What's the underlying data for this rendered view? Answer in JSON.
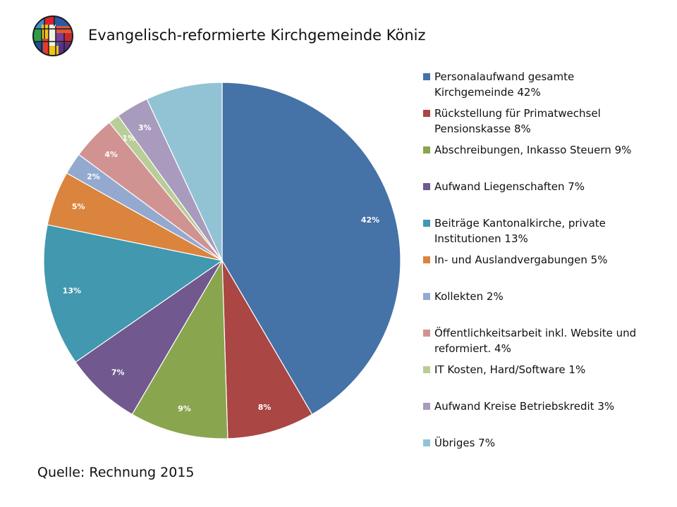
{
  "header": {
    "title": "Evangelisch-reformierte Kirchgemeinde Köniz"
  },
  "footer": {
    "source": "Quelle: Rechnung 2015"
  },
  "chart_data": {
    "type": "pie",
    "title": "",
    "legend_position": "right",
    "slices": [
      {
        "name": "Personalaufwand gesamte Kirchgemeinde 42%",
        "value": 42,
        "label": "42%",
        "color": "#4572A7"
      },
      {
        "name": "Rückstellung für Primatwechsel Pensionskasse 8%",
        "value": 8,
        "label": "8%",
        "color": "#AA4643"
      },
      {
        "name": "Abschreibungen, Inkasso Steuern 9%",
        "value": 9,
        "label": "9%",
        "color": "#89A54E"
      },
      {
        "name": "Aufwand Liegenschaften 7%",
        "value": 7,
        "label": "7%",
        "color": "#71588F"
      },
      {
        "name": "Beiträge Kantonalkirche, private Institutionen 13%",
        "value": 13,
        "label": "13%",
        "color": "#4198AF"
      },
      {
        "name": "In- und Auslandvergabungen 5%",
        "value": 5,
        "label": "5%",
        "color": "#DB843D"
      },
      {
        "name": "Kollekten 2%",
        "value": 2,
        "label": "2%",
        "color": "#93A9CF"
      },
      {
        "name": "Öffentlichkeitsarbeit inkl. Website und reformiert. 4%",
        "value": 4,
        "label": "4%",
        "color": "#D19392"
      },
      {
        "name": "IT Kosten, Hard/Software 1%",
        "value": 1,
        "label": "1%",
        "color": "#B9CD96"
      },
      {
        "name": "Aufwand Kreise Betriebskredit 3%",
        "value": 3,
        "label": "3%",
        "color": "#A99BBD"
      },
      {
        "name": "Übriges 7%",
        "value": 7,
        "label": "",
        "color": "#92C3D4"
      }
    ]
  }
}
